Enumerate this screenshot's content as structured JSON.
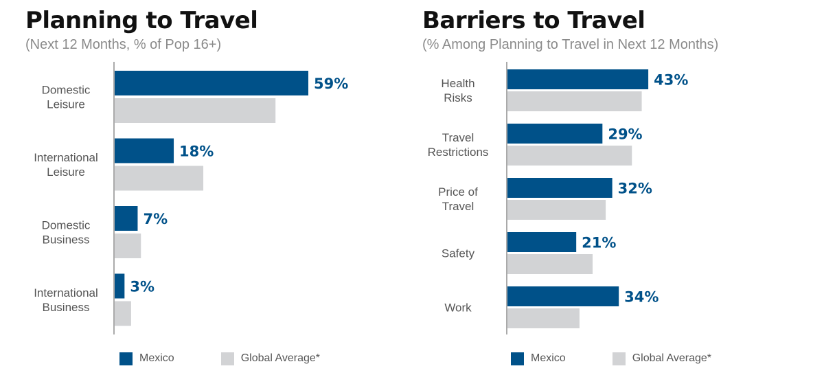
{
  "colors": {
    "mexico": "#005189",
    "global": "#d2d3d5",
    "axis": "#555555"
  },
  "legend": {
    "series1": "Mexico",
    "series2": "Global Average*"
  },
  "chart_data": [
    {
      "type": "bar",
      "orientation": "horizontal",
      "title": "Planning to Travel",
      "subtitle": "(Next 12 Months, % of Pop 16+)",
      "categories": [
        [
          "Domestic",
          "Leisure"
        ],
        [
          "International",
          "Leisure"
        ],
        [
          "Domestic",
          "Business"
        ],
        [
          "International",
          "Business"
        ]
      ],
      "series": [
        {
          "name": "Mexico",
          "values": [
            59,
            18,
            7,
            3
          ],
          "labels": [
            "59%",
            "18%",
            "7%",
            "3%"
          ]
        },
        {
          "name": "Global Average*",
          "values": [
            49,
            27,
            8,
            5
          ]
        }
      ],
      "xlim": [
        0,
        100
      ],
      "grid": false,
      "legend_position": "bottom"
    },
    {
      "type": "bar",
      "orientation": "horizontal",
      "title": "Barriers to Travel",
      "subtitle": "(% Among Planning to Travel in Next 12 Months)",
      "categories": [
        [
          "Health",
          "Risks"
        ],
        [
          "Travel",
          "Restrictions"
        ],
        [
          "Price of",
          "Travel"
        ],
        [
          "Safety"
        ],
        [
          "Work"
        ]
      ],
      "series": [
        {
          "name": "Mexico",
          "values": [
            43,
            29,
            32,
            21,
            34
          ],
          "labels": [
            "43%",
            "29%",
            "32%",
            "21%",
            "34%"
          ]
        },
        {
          "name": "Global Average*",
          "values": [
            41,
            38,
            30,
            26,
            22
          ]
        }
      ],
      "xlim": [
        0,
        100
      ],
      "grid": false,
      "legend_position": "bottom"
    }
  ]
}
